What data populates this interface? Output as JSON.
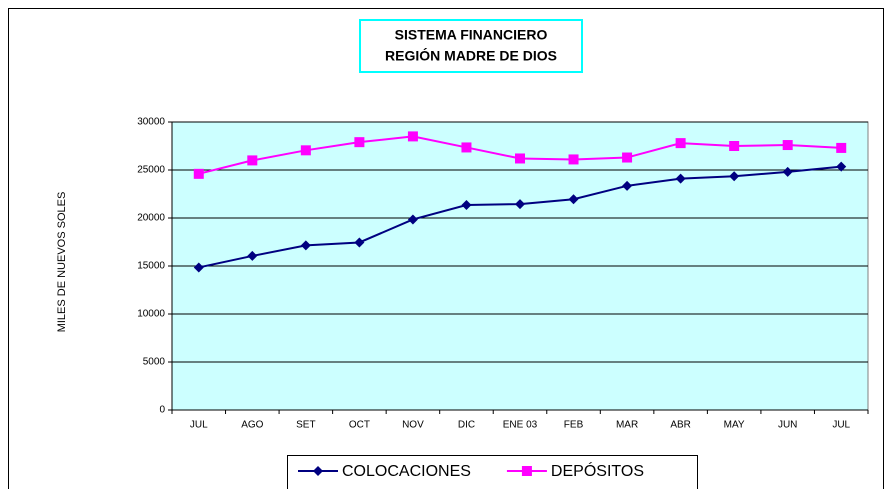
{
  "chart_data": {
    "type": "line",
    "title": [
      "SISTEMA FINANCIERO",
      "REGIÓN MADRE DE DIOS"
    ],
    "y_label": "MILES DE NUEVOS SOLES",
    "categories": [
      "JUL",
      "AGO",
      "SET",
      "OCT",
      "NOV",
      "DIC",
      "ENE 03",
      "FEB",
      "MAR",
      "ABR",
      "MAY",
      "JUN",
      "JUL"
    ],
    "series": [
      {
        "name": "COLOCACIONES",
        "color": "#000080",
        "marker": "diamond",
        "values": [
          14850,
          16050,
          17150,
          17450,
          19850,
          21350,
          21450,
          21950,
          23350,
          24100,
          24350,
          24800,
          25350
        ]
      },
      {
        "name": "DEPÓSITOS",
        "color": "#ff00ff",
        "marker": "square",
        "values": [
          24600,
          26000,
          27050,
          27900,
          28500,
          27350,
          26200,
          26100,
          26300,
          27800,
          27500,
          27600,
          27300
        ]
      }
    ],
    "ylim": [
      0,
      30000
    ],
    "yticks": [
      0,
      5000,
      10000,
      15000,
      20000,
      25000,
      30000
    ],
    "grid": true,
    "plot_background": "#ccffff",
    "legend": "bottom"
  }
}
